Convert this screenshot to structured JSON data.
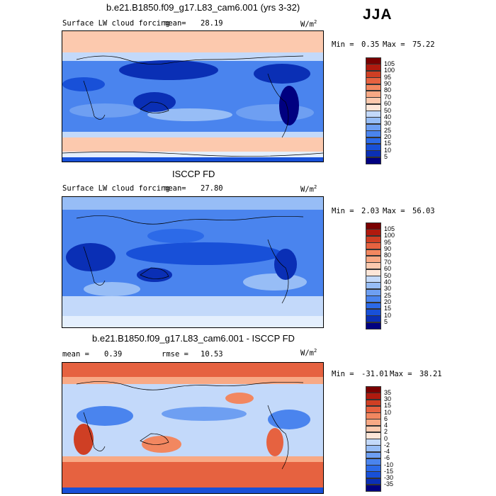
{
  "season": "JJA",
  "colors": {
    "abs_scale": [
      "#000080",
      "#0a2fb5",
      "#1850d8",
      "#2c6ae8",
      "#4a84ee",
      "#6e9ff2",
      "#97bdf6",
      "#c3d9fa",
      "#e4effd",
      "#fde6d8",
      "#fcc9ae",
      "#f8a985",
      "#f28760",
      "#e66240",
      "#cf3f24",
      "#b01a0e",
      "#7a0000"
    ],
    "diff_scale": [
      "#000080",
      "#0a2fb5",
      "#1850d8",
      "#2c6ae8",
      "#4a84ee",
      "#6e9ff2",
      "#97bdf6",
      "#c3d9fa",
      "#e4effd",
      "#fde6d8",
      "#fcc9ae",
      "#f8a985",
      "#f28760",
      "#e66240",
      "#cf3f24",
      "#b01a0e",
      "#7a0000"
    ],
    "land": "#1e45c0",
    "ocean_mid": "#97bdf6"
  },
  "panels": [
    {
      "title": "b.e21.B1850.f09_g17.L83_cam6.001 (yrs 3-32)",
      "variable": "Surface LW cloud forcing",
      "mean_label": "mean=",
      "mean": "28.19",
      "units": "W/m",
      "units_exp": "2",
      "min_label": "Min =",
      "min": "0.35",
      "max_label": "Max =",
      "max": "75.22",
      "colorbar_labels": [
        "105",
        "100",
        "95",
        "90",
        "80",
        "70",
        "60",
        "50",
        "40",
        "30",
        "25",
        "20",
        "15",
        "10",
        "5"
      ]
    },
    {
      "title": "ISCCP FD",
      "variable": "Surface LW cloud forcing",
      "mean_label": "mean=",
      "mean": "27.80",
      "units": "W/m",
      "units_exp": "2",
      "min_label": "Min =",
      "min": "2.03",
      "max_label": "Max =",
      "max": "56.03",
      "colorbar_labels": [
        "105",
        "100",
        "95",
        "90",
        "80",
        "70",
        "60",
        "50",
        "40",
        "30",
        "25",
        "20",
        "15",
        "10",
        "5"
      ]
    },
    {
      "title": "b.e21.B1850.f09_g17.L83_cam6.001 - ISCCP FD",
      "mean_label": "mean =",
      "mean": "0.39",
      "rmse_label": "rmse =",
      "rmse": "10.53",
      "units": "W/m",
      "units_exp": "2",
      "min_label": "Min =",
      "min": "-31.01",
      "max_label": "Max =",
      "max": "38.21",
      "colorbar_labels": [
        "35",
        "30",
        "15",
        "10",
        "6",
        "4",
        "2",
        "0",
        "-2",
        "-4",
        "-6",
        "-10",
        "-15",
        "-30",
        "-35"
      ]
    }
  ],
  "chart_data": [
    {
      "type": "heatmap",
      "title": "b.e21.B1850.f09_g17.L83_cam6.001 (yrs 3-32)",
      "subtitle": "Surface LW cloud forcing",
      "season": "JJA",
      "units": "W/m2",
      "mean": 28.19,
      "min": 0.35,
      "max": 75.22,
      "contour_levels": [
        5,
        10,
        15,
        20,
        25,
        30,
        40,
        50,
        60,
        70,
        80,
        90,
        95,
        100,
        105
      ]
    },
    {
      "type": "heatmap",
      "title": "ISCCP FD",
      "subtitle": "Surface LW cloud forcing",
      "season": "JJA",
      "units": "W/m2",
      "mean": 27.8,
      "min": 2.03,
      "max": 56.03,
      "contour_levels": [
        5,
        10,
        15,
        20,
        25,
        30,
        40,
        50,
        60,
        70,
        80,
        90,
        95,
        100,
        105
      ]
    },
    {
      "type": "heatmap",
      "title": "b.e21.B1850.f09_g17.L83_cam6.001 - ISCCP FD",
      "season": "JJA",
      "units": "W/m2",
      "mean": 0.39,
      "rmse": 10.53,
      "min": -31.01,
      "max": 38.21,
      "contour_levels": [
        -35,
        -30,
        -15,
        -10,
        -6,
        -4,
        -2,
        0,
        2,
        4,
        6,
        10,
        15,
        30,
        35
      ]
    }
  ]
}
